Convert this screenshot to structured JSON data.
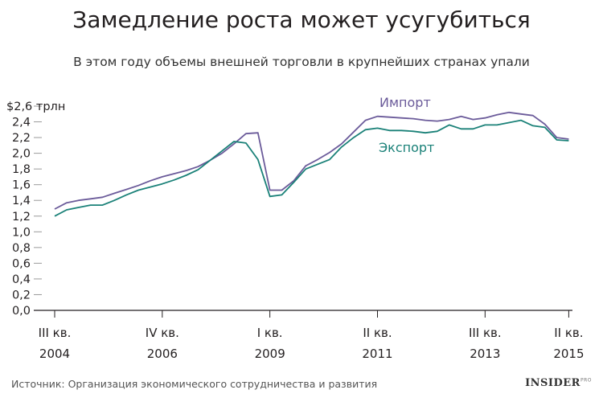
{
  "title": "Замедление роста может усугубиться",
  "subtitle": "В этом году объемы внешней торговли в крупнейших странах упали",
  "source": "Источник: Организация экономического сотрудничества и развития",
  "brand": "INSIDER",
  "brand_sup": "PRO",
  "chart_data": {
    "type": "line",
    "ylabel": "",
    "ylim": [
      0,
      2.6
    ],
    "y_ticks": [
      "0,0",
      "0,2",
      "0,4",
      "0,6",
      "0,8",
      "1,0",
      "1,2",
      "1,4",
      "1,6",
      "1,8",
      "2,0",
      "2,2",
      "2,4",
      "$2,6 трлн"
    ],
    "x_ticks": [
      {
        "q": "III кв.",
        "y": "2004",
        "pos": 0
      },
      {
        "q": "IV кв.",
        "y": "2006",
        "pos": 9
      },
      {
        "q": "I кв.",
        "y": "2009",
        "pos": 18
      },
      {
        "q": "II кв.",
        "y": "2011",
        "pos": 27
      },
      {
        "q": "III кв.",
        "y": "2013",
        "pos": 36
      },
      {
        "q": "II кв.",
        "y": "2015",
        "pos": 43
      }
    ],
    "series": [
      {
        "name": "Импорт",
        "color": "#6b5b9a",
        "values": [
          1.29,
          1.37,
          1.4,
          1.42,
          1.44,
          1.49,
          1.54,
          1.59,
          1.65,
          1.7,
          1.74,
          1.78,
          1.83,
          1.91,
          2.0,
          2.12,
          2.25,
          2.26,
          1.53,
          1.53,
          1.65,
          1.84,
          1.92,
          2.01,
          2.12,
          2.27,
          2.42,
          2.47,
          2.46,
          2.45,
          2.44,
          2.42,
          2.41,
          2.43,
          2.47,
          2.43,
          2.45,
          2.49,
          2.52,
          2.5,
          2.48,
          2.37,
          2.2,
          2.18
        ]
      },
      {
        "name": "Экспорт",
        "color": "#1a8178",
        "values": [
          1.2,
          1.28,
          1.31,
          1.34,
          1.34,
          1.4,
          1.47,
          1.53,
          1.57,
          1.61,
          1.66,
          1.72,
          1.79,
          1.91,
          2.03,
          2.15,
          2.13,
          1.92,
          1.45,
          1.47,
          1.63,
          1.8,
          1.86,
          1.92,
          2.08,
          2.2,
          2.3,
          2.32,
          2.29,
          2.29,
          2.28,
          2.26,
          2.28,
          2.36,
          2.31,
          2.31,
          2.36,
          2.36,
          2.39,
          2.42,
          2.35,
          2.33,
          2.17,
          2.16
        ]
      }
    ],
    "series_labels": [
      "Импорт",
      "Экспорт"
    ]
  }
}
